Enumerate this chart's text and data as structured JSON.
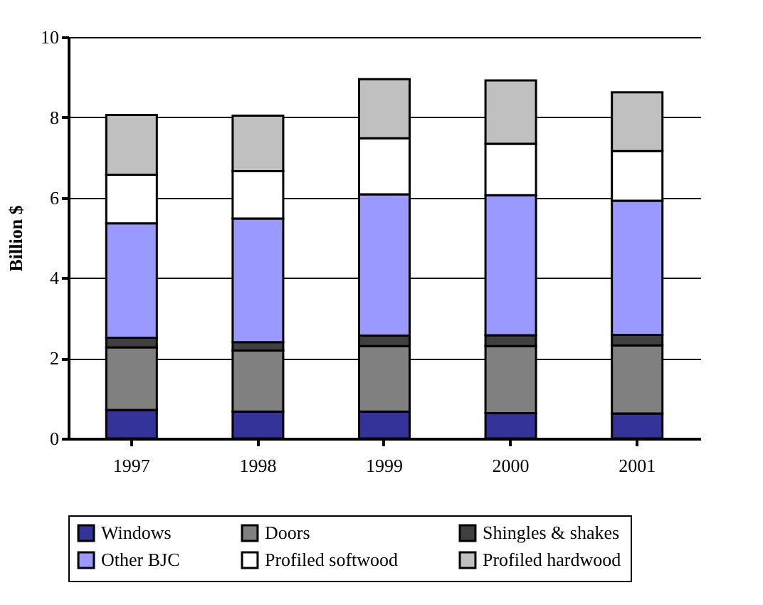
{
  "chart_data": {
    "type": "bar",
    "stacked": true,
    "ylabel": "Billion $",
    "categories": [
      "1997",
      "1998",
      "1999",
      "2000",
      "2001"
    ],
    "series": [
      {
        "name": "Windows",
        "color": "#333399",
        "values": [
          0.71,
          0.67,
          0.67,
          0.63,
          0.62
        ]
      },
      {
        "name": "Doors",
        "color": "#808080",
        "values": [
          1.56,
          1.52,
          1.63,
          1.67,
          1.7
        ]
      },
      {
        "name": "Shingles & shakes",
        "color": "#404040",
        "values": [
          0.24,
          0.21,
          0.26,
          0.27,
          0.26
        ]
      },
      {
        "name": "Other BJC",
        "color": "#9999ff",
        "values": [
          2.85,
          3.08,
          3.52,
          3.49,
          3.34
        ]
      },
      {
        "name": "Profiled softwood",
        "color": "#ffffff",
        "values": [
          1.21,
          1.18,
          1.4,
          1.28,
          1.24
        ]
      },
      {
        "name": "Profiled hardwood",
        "color": "#c0c0c0",
        "values": [
          1.49,
          1.38,
          1.47,
          1.58,
          1.46
        ]
      }
    ],
    "ylim": [
      0,
      10
    ],
    "yticks": [
      0,
      2,
      4,
      6,
      8,
      10
    ],
    "grid": "y",
    "legend": "bottom"
  }
}
